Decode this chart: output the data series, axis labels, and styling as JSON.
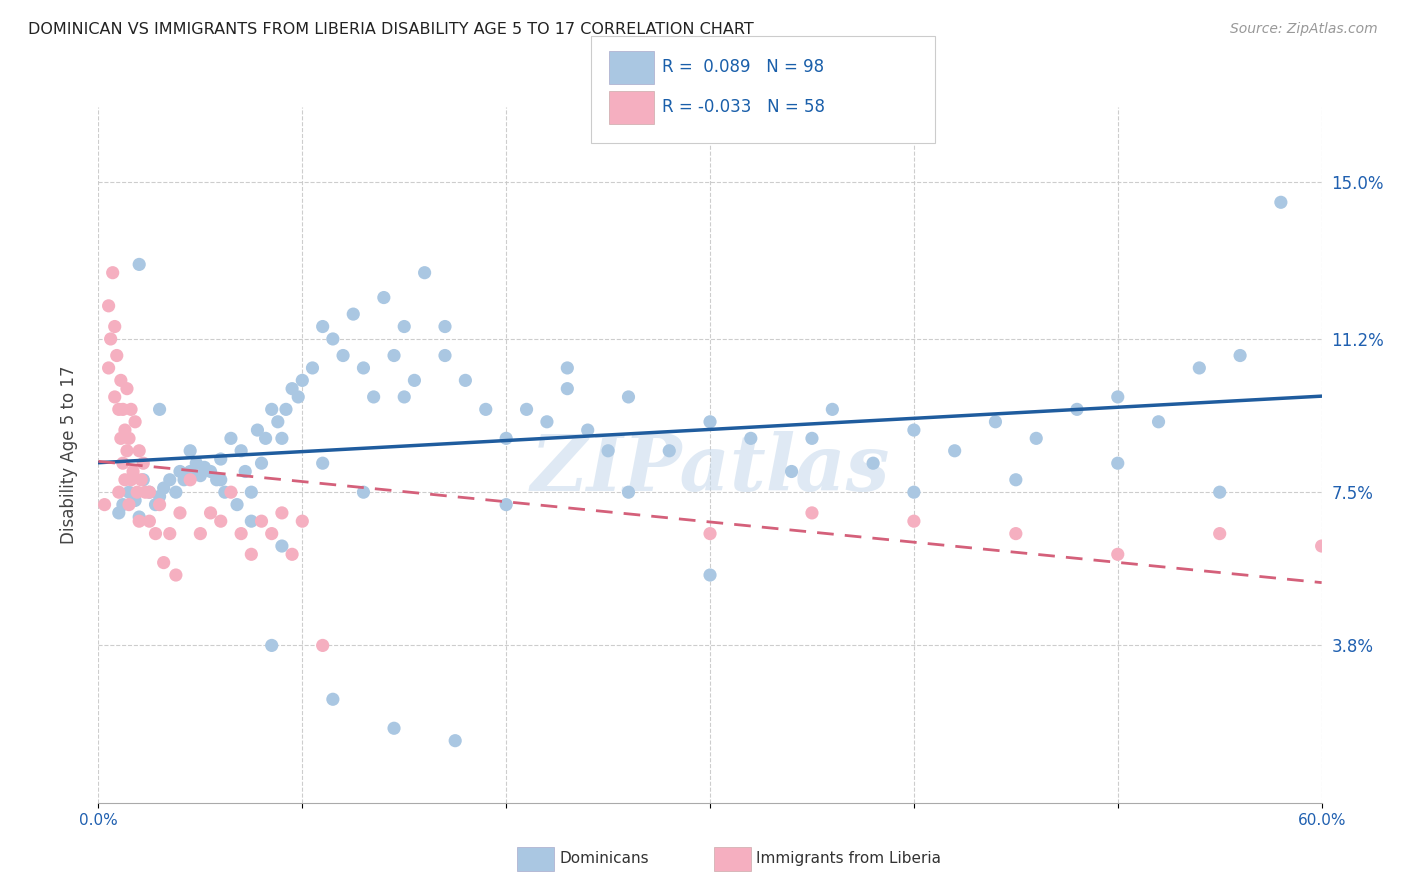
{
  "title": "DOMINICAN VS IMMIGRANTS FROM LIBERIA DISABILITY AGE 5 TO 17 CORRELATION CHART",
  "source": "Source: ZipAtlas.com",
  "ylabel": "Disability Age 5 to 17",
  "ytick_labels": [
    "3.8%",
    "7.5%",
    "11.2%",
    "15.0%"
  ],
  "ytick_values": [
    3.8,
    7.5,
    11.2,
    15.0
  ],
  "xtick_labels": [
    "0.0%",
    "60.0%"
  ],
  "xlim": [
    0.0,
    60.0
  ],
  "ylim": [
    0.0,
    16.8
  ],
  "legend_labels": [
    "Dominicans",
    "Immigrants from Liberia"
  ],
  "R_dominican": "0.089",
  "N_dominican": "98",
  "R_liberia": "-0.033",
  "N_liberia": "58",
  "blue_color": "#aac7e2",
  "pink_color": "#f5afc0",
  "trend_blue": "#1f5c9e",
  "trend_pink": "#d4607a",
  "watermark": "ZIPatlas",
  "dom_x": [
    1.0,
    1.2,
    1.5,
    1.8,
    2.0,
    2.2,
    2.5,
    2.8,
    3.0,
    3.2,
    3.5,
    3.8,
    4.0,
    4.2,
    4.5,
    4.8,
    5.0,
    5.2,
    5.5,
    5.8,
    6.0,
    6.2,
    6.5,
    6.8,
    7.0,
    7.2,
    7.5,
    7.8,
    8.0,
    8.2,
    8.5,
    8.8,
    9.0,
    9.2,
    9.5,
    9.8,
    10.0,
    10.5,
    11.0,
    11.5,
    12.0,
    12.5,
    13.0,
    13.5,
    14.0,
    14.5,
    15.0,
    15.5,
    16.0,
    17.0,
    18.0,
    19.0,
    20.0,
    21.0,
    22.0,
    23.0,
    24.0,
    25.0,
    26.0,
    28.0,
    30.0,
    32.0,
    34.0,
    36.0,
    38.0,
    40.0,
    42.0,
    44.0,
    46.0,
    48.0,
    50.0,
    52.0,
    54.0,
    56.0,
    58.0,
    2.0,
    3.0,
    4.5,
    6.0,
    7.5,
    9.0,
    11.0,
    13.0,
    15.0,
    17.0,
    20.0,
    23.0,
    26.0,
    30.0,
    35.0,
    40.0,
    45.0,
    50.0,
    55.0,
    8.5,
    11.5,
    14.5,
    17.5
  ],
  "dom_y": [
    7.0,
    7.2,
    7.5,
    7.3,
    6.9,
    7.8,
    7.5,
    7.2,
    7.4,
    7.6,
    7.8,
    7.5,
    8.0,
    7.8,
    8.5,
    8.2,
    7.9,
    8.1,
    8.0,
    7.8,
    8.3,
    7.5,
    8.8,
    7.2,
    8.5,
    8.0,
    7.5,
    9.0,
    8.2,
    8.8,
    9.5,
    9.2,
    8.8,
    9.5,
    10.0,
    9.8,
    10.2,
    10.5,
    11.5,
    11.2,
    10.8,
    11.8,
    10.5,
    9.8,
    12.2,
    10.8,
    11.5,
    10.2,
    12.8,
    11.5,
    10.2,
    9.5,
    8.8,
    9.5,
    9.2,
    10.5,
    9.0,
    8.5,
    9.8,
    8.5,
    9.2,
    8.8,
    8.0,
    9.5,
    8.2,
    9.0,
    8.5,
    9.2,
    8.8,
    9.5,
    9.8,
    9.2,
    10.5,
    10.8,
    14.5,
    13.0,
    9.5,
    8.0,
    7.8,
    6.8,
    6.2,
    8.2,
    7.5,
    9.8,
    10.8,
    7.2,
    10.0,
    7.5,
    5.5,
    8.8,
    7.5,
    7.8,
    8.2,
    7.5,
    3.8,
    2.5,
    1.8,
    1.5
  ],
  "lib_x": [
    0.3,
    0.5,
    0.5,
    0.6,
    0.7,
    0.8,
    0.8,
    0.9,
    1.0,
    1.0,
    1.1,
    1.1,
    1.2,
    1.2,
    1.3,
    1.3,
    1.4,
    1.4,
    1.5,
    1.5,
    1.6,
    1.6,
    1.7,
    1.8,
    1.9,
    2.0,
    2.0,
    2.1,
    2.2,
    2.3,
    2.5,
    2.5,
    2.8,
    3.0,
    3.2,
    3.5,
    3.8,
    4.0,
    4.5,
    5.0,
    5.5,
    6.0,
    6.5,
    7.0,
    7.5,
    8.0,
    8.5,
    9.0,
    9.5,
    10.0,
    11.0,
    30.0,
    35.0,
    40.0,
    45.0,
    50.0,
    55.0,
    60.0
  ],
  "lib_y": [
    7.2,
    12.0,
    10.5,
    11.2,
    12.8,
    9.8,
    11.5,
    10.8,
    7.5,
    9.5,
    8.8,
    10.2,
    9.5,
    8.2,
    7.8,
    9.0,
    8.5,
    10.0,
    7.2,
    8.8,
    9.5,
    7.8,
    8.0,
    9.2,
    7.5,
    8.5,
    6.8,
    7.8,
    8.2,
    7.5,
    6.8,
    7.5,
    6.5,
    7.2,
    5.8,
    6.5,
    5.5,
    7.0,
    7.8,
    6.5,
    7.0,
    6.8,
    7.5,
    6.5,
    6.0,
    6.8,
    6.5,
    7.0,
    6.0,
    6.8,
    3.8,
    6.5,
    7.0,
    6.8,
    6.5,
    6.0,
    6.5,
    6.2
  ]
}
